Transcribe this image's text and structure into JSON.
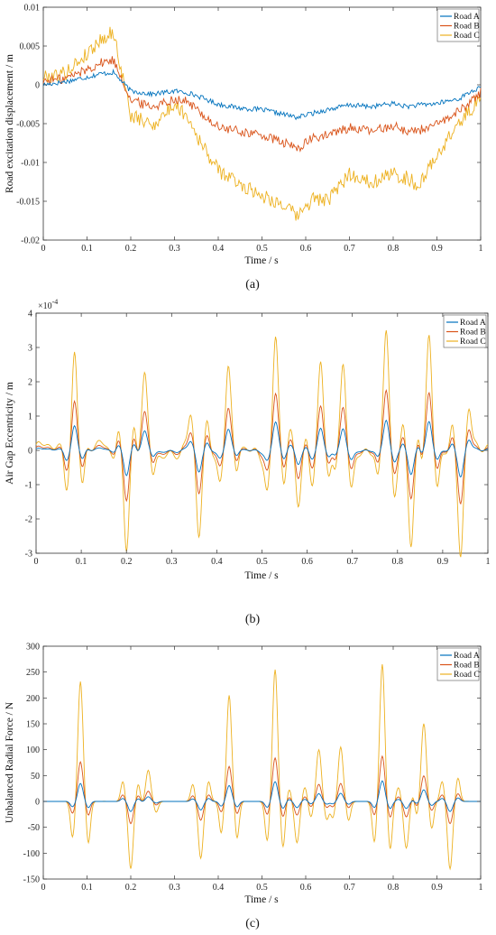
{
  "chart_data": [
    {
      "type": "line",
      "caption": "(a)",
      "xlabel": "Time / s",
      "ylabel": "Road excitation displacement / m",
      "xlim": [
        0,
        1
      ],
      "ylim": [
        -0.02,
        0.01
      ],
      "xticks": [
        0,
        0.1,
        0.2,
        0.3,
        0.4,
        0.5,
        0.6,
        0.7,
        0.8,
        0.9,
        1
      ],
      "xtick_labels": [
        "0",
        "0.1",
        "0.2",
        "0.3",
        "0.4",
        "0.5",
        "0.6",
        "0.7",
        "0.8",
        "0.9",
        "1"
      ],
      "yticks": [
        -0.02,
        -0.015,
        -0.01,
        -0.005,
        0,
        0.005,
        0.01
      ],
      "ytick_labels": [
        "-0.02",
        "-0.015",
        "-0.01",
        "-0.005",
        "0",
        "0.005",
        "0.01"
      ],
      "legend_position": "top-right",
      "grid": false,
      "x": [
        0,
        0.05,
        0.1,
        0.13,
        0.16,
        0.18,
        0.2,
        0.25,
        0.3,
        0.33,
        0.36,
        0.4,
        0.45,
        0.5,
        0.55,
        0.58,
        0.62,
        0.65,
        0.7,
        0.75,
        0.8,
        0.83,
        0.86,
        0.9,
        0.95,
        0.98,
        1
      ],
      "series": [
        {
          "name": "Road A",
          "color": "#0072BD",
          "values": [
            0,
            0.0004,
            0.001,
            0.0014,
            0.0016,
            0.0004,
            -0.0008,
            -0.0012,
            -0.0008,
            -0.001,
            -0.0016,
            -0.0025,
            -0.003,
            -0.0032,
            -0.0038,
            -0.0042,
            -0.0036,
            -0.0032,
            -0.0026,
            -0.0028,
            -0.0024,
            -0.0028,
            -0.0026,
            -0.0024,
            -0.0018,
            -0.0008,
            -0.0004
          ]
        },
        {
          "name": "Road B",
          "color": "#D95319",
          "values": [
            0.0005,
            0.0008,
            0.002,
            0.0028,
            0.0032,
            0.0008,
            -0.002,
            -0.0028,
            -0.0018,
            -0.0022,
            -0.0036,
            -0.0055,
            -0.006,
            -0.0065,
            -0.0075,
            -0.0082,
            -0.0068,
            -0.0065,
            -0.0055,
            -0.006,
            -0.0052,
            -0.006,
            -0.0058,
            -0.0052,
            -0.0034,
            -0.002,
            -0.001
          ]
        },
        {
          "name": "Road C",
          "color": "#EDB120",
          "values": [
            0.001,
            0.0015,
            0.004,
            0.0058,
            0.0068,
            0.0015,
            -0.004,
            -0.0052,
            -0.0025,
            -0.004,
            -0.0075,
            -0.011,
            -0.0128,
            -0.0142,
            -0.0155,
            -0.017,
            -0.0145,
            -0.015,
            -0.0115,
            -0.0125,
            -0.0115,
            -0.012,
            -0.013,
            -0.009,
            -0.005,
            -0.003,
            -0.0015
          ]
        }
      ]
    },
    {
      "type": "line",
      "caption": "(b)",
      "xlabel": "Time / s",
      "ylabel": "Air Gap Eccentricity / m",
      "multiplier_label": "×10",
      "multiplier_exp": "-4",
      "xlim": [
        0,
        1
      ],
      "ylim": [
        -3,
        4
      ],
      "xticks": [
        0,
        0.1,
        0.2,
        0.3,
        0.4,
        0.5,
        0.6,
        0.7,
        0.8,
        0.9,
        1
      ],
      "xtick_labels": [
        "0",
        "0.1",
        "0.2",
        "0.3",
        "0.4",
        "0.5",
        "0.6",
        "0.7",
        "0.8",
        "0.9",
        "1"
      ],
      "yticks": [
        -3,
        -2,
        -1,
        0,
        1,
        2,
        3,
        4
      ],
      "ytick_labels": [
        "-3",
        "-2",
        "-1",
        "0",
        "1",
        "2",
        "3",
        "4"
      ],
      "legend_position": "top-right",
      "grid": false,
      "peaks_x": [
        0.085,
        0.2,
        0.24,
        0.36,
        0.425,
        0.53,
        0.58,
        0.63,
        0.68,
        0.775,
        0.83,
        0.87,
        0.94
      ],
      "peaks_y": [
        3.1,
        -2.9,
        1.9,
        -2.5,
        2.4,
        3.2,
        -1.7,
        2.5,
        2.3,
        3.3,
        -2.6,
        3.0,
        -2.9
      ],
      "series": [
        {
          "name": "Road A",
          "color": "#0072BD",
          "scale": 0.25
        },
        {
          "name": "Road B",
          "color": "#D95319",
          "scale": 0.5
        },
        {
          "name": "Road C",
          "color": "#EDB120",
          "scale": 1.0
        }
      ]
    },
    {
      "type": "line",
      "caption": "(c)",
      "xlabel": "Time / s",
      "ylabel": "Unbalanced Radial Force / N",
      "xlim": [
        0,
        1
      ],
      "ylim": [
        -150,
        300
      ],
      "xticks": [
        0,
        0.1,
        0.2,
        0.3,
        0.4,
        0.5,
        0.6,
        0.7,
        0.8,
        0.9,
        1
      ],
      "xtick_labels": [
        "0",
        "0.1",
        "0.2",
        "0.3",
        "0.4",
        "0.5",
        "0.6",
        "0.7",
        "0.8",
        "0.9",
        "1"
      ],
      "yticks": [
        -150,
        -100,
        -50,
        0,
        50,
        100,
        150,
        200,
        250,
        300
      ],
      "ytick_labels": [
        "-150",
        "-100",
        "-50",
        "0",
        "50",
        "100",
        "150",
        "200",
        "250",
        "300"
      ],
      "legend_position": "top-right",
      "grid": false,
      "peaks_x": [
        0.085,
        0.2,
        0.24,
        0.36,
        0.425,
        0.53,
        0.58,
        0.63,
        0.68,
        0.775,
        0.83,
        0.87,
        0.93
      ],
      "peaks_y": [
        232,
        -130,
        60,
        -110,
        205,
        255,
        -80,
        100,
        105,
        265,
        -90,
        150,
        -130
      ],
      "series": [
        {
          "name": "Road A",
          "color": "#0072BD",
          "scale": 0.15
        },
        {
          "name": "Road B",
          "color": "#D95319",
          "scale": 0.33
        },
        {
          "name": "Road C",
          "color": "#EDB120",
          "scale": 1.0
        }
      ]
    }
  ]
}
